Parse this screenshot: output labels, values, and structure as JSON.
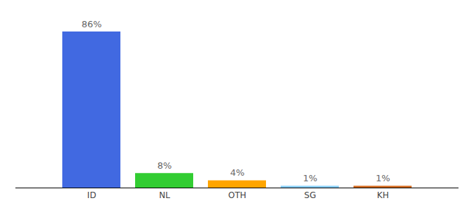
{
  "chart_data": {
    "type": "bar",
    "categories": [
      "ID",
      "NL",
      "OTH",
      "SG",
      "KH"
    ],
    "values": [
      86,
      8,
      4,
      1,
      1
    ],
    "value_labels": [
      "86%",
      "8%",
      "4%",
      "1%",
      "1%"
    ],
    "colors": [
      "#4169e1",
      "#32cd32",
      "#ffa500",
      "#87cefa",
      "#d2691e"
    ],
    "data_labels": true,
    "tick_labels": "x"
  }
}
